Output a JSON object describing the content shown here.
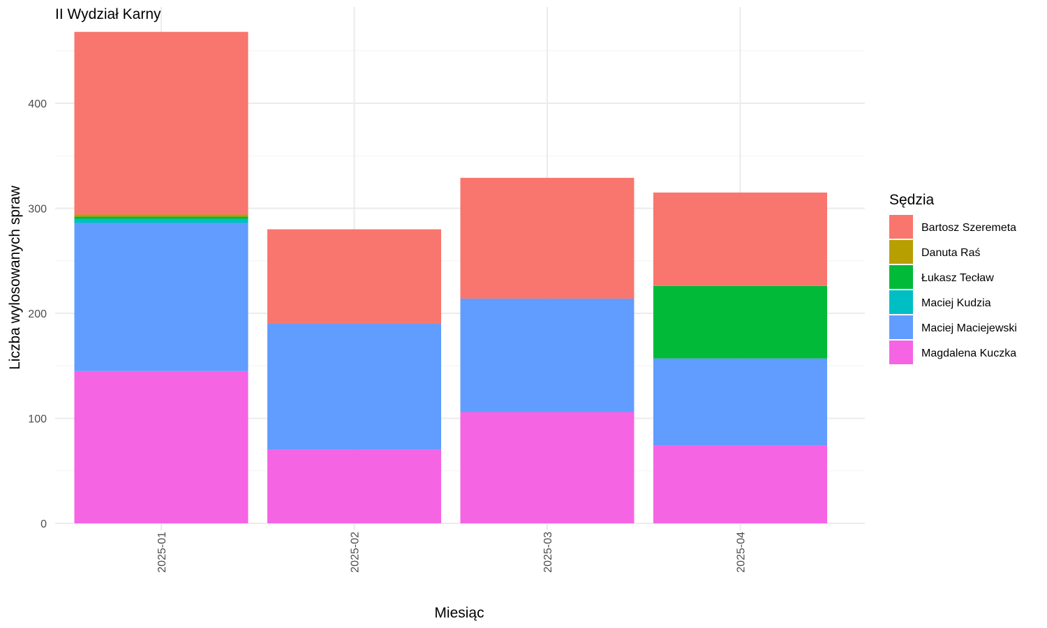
{
  "chart_data": {
    "type": "bar",
    "stacked": true,
    "title": "II Wydział Karny",
    "xlabel": "Miesiąc",
    "ylabel": "Liczba wylosowanych spraw",
    "categories": [
      "2025-01",
      "2025-02",
      "2025-03",
      "2025-04"
    ],
    "ylim": [
      0,
      470
    ],
    "yticks": [
      0,
      100,
      200,
      300,
      400
    ],
    "grid": true,
    "legend": {
      "title": "Sędzia",
      "position": "right"
    },
    "series": [
      {
        "name": "Magdalena Kuczka",
        "color": "#F564E3",
        "values": [
          145,
          70,
          106,
          74
        ]
      },
      {
        "name": "Maciej Maciejewski",
        "color": "#619CFF",
        "values": [
          141,
          120,
          108,
          83
        ]
      },
      {
        "name": "Maciej Kudzia",
        "color": "#00BFC4",
        "values": [
          4,
          0,
          0,
          0
        ]
      },
      {
        "name": "Łukasz Tecław",
        "color": "#00BA38",
        "values": [
          2,
          0,
          0,
          69
        ]
      },
      {
        "name": "Danuta Raś",
        "color": "#B79F00",
        "values": [
          2,
          0,
          0,
          0
        ]
      },
      {
        "name": "Bartosz Szeremeta",
        "color": "#F8766D",
        "values": [
          174,
          90,
          115,
          89
        ]
      }
    ],
    "legend_order": [
      "Bartosz Szeremeta",
      "Danuta Raś",
      "Łukasz Tecław",
      "Maciej Kudzia",
      "Maciej Maciejewski",
      "Magdalena Kuczka"
    ]
  }
}
